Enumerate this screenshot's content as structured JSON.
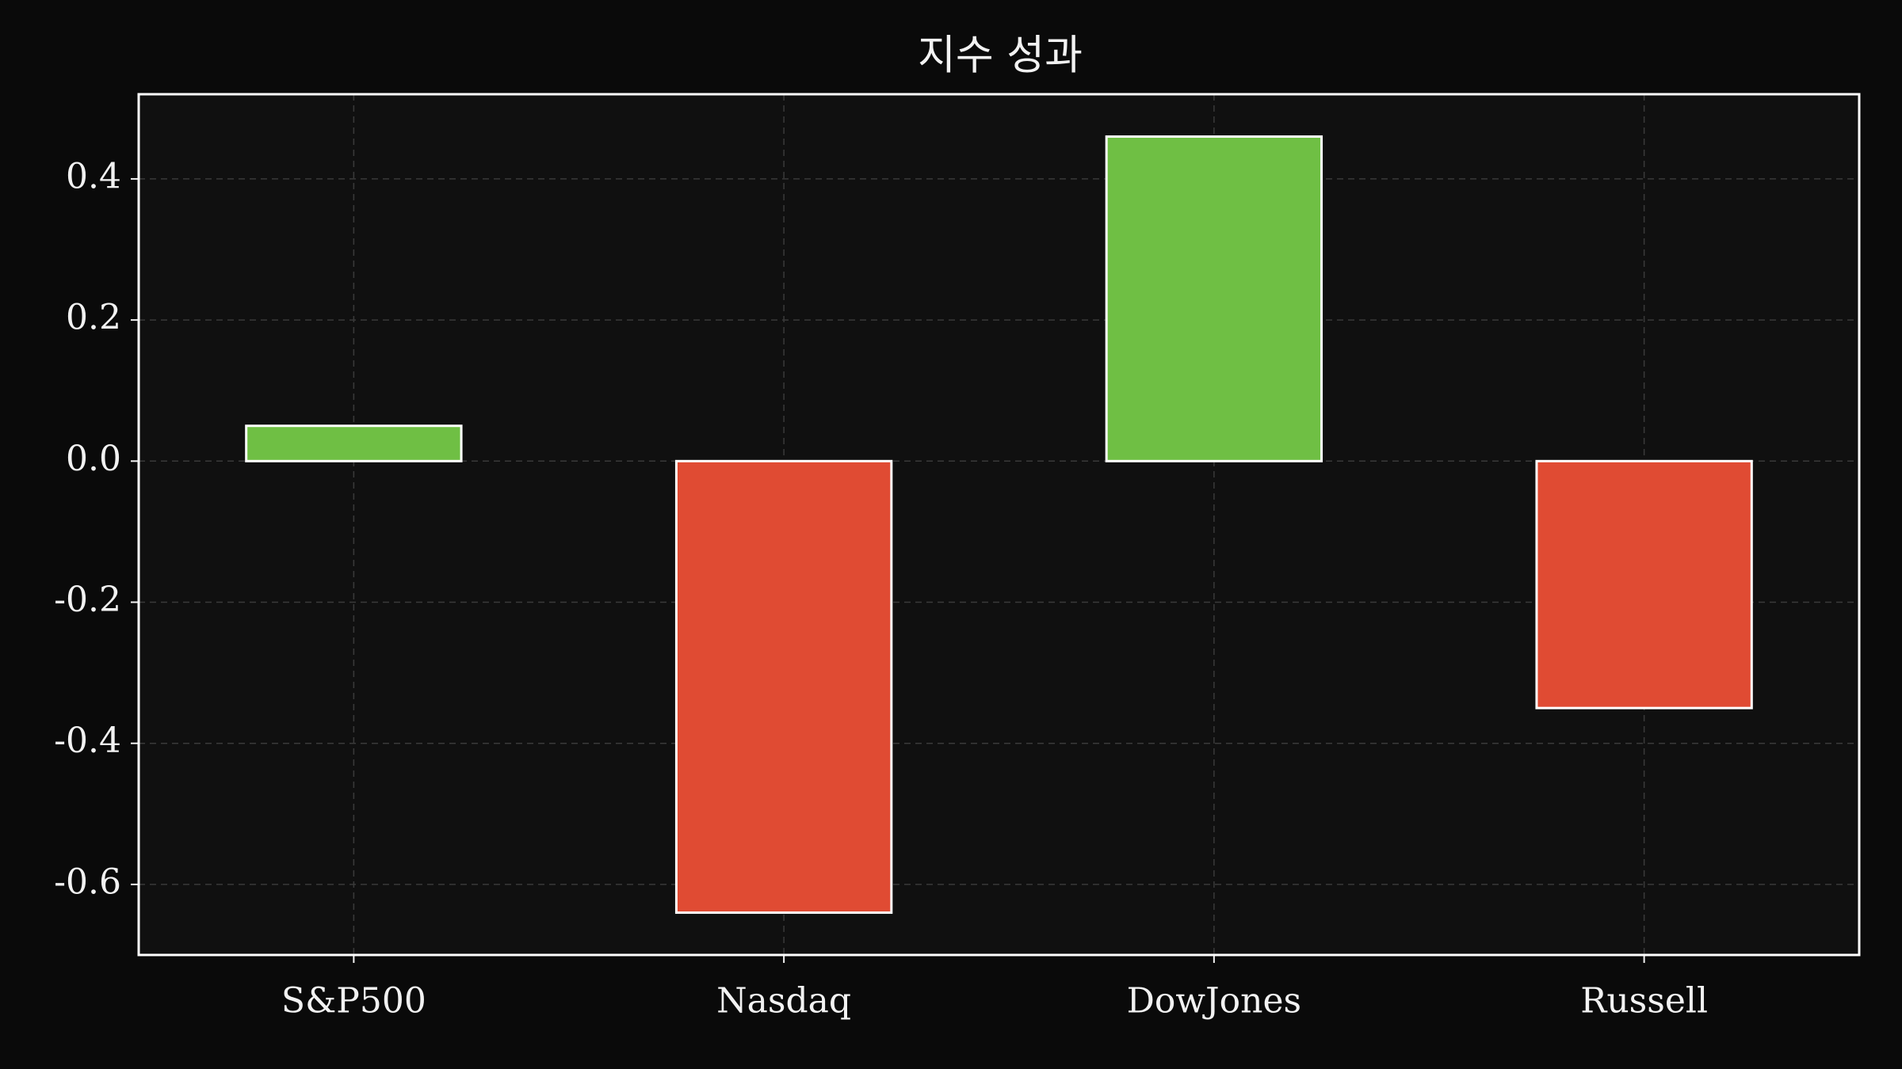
{
  "chart_data": {
    "type": "bar",
    "title": "지수 성과",
    "categories": [
      "S&P500",
      "Nasdaq",
      "DowJones",
      "Russell"
    ],
    "values": [
      0.05,
      -0.64,
      0.46,
      -0.35
    ],
    "colors": [
      "#6fbf44",
      "#e04b33",
      "#6fbf44",
      "#e04b33"
    ],
    "ylim": [
      -0.7,
      0.52
    ],
    "yticks": [
      -0.6,
      -0.4,
      -0.2,
      {
        "value": 0,
        "label": "0.0"
      },
      0.2,
      0.4
    ],
    "grid": true
  }
}
